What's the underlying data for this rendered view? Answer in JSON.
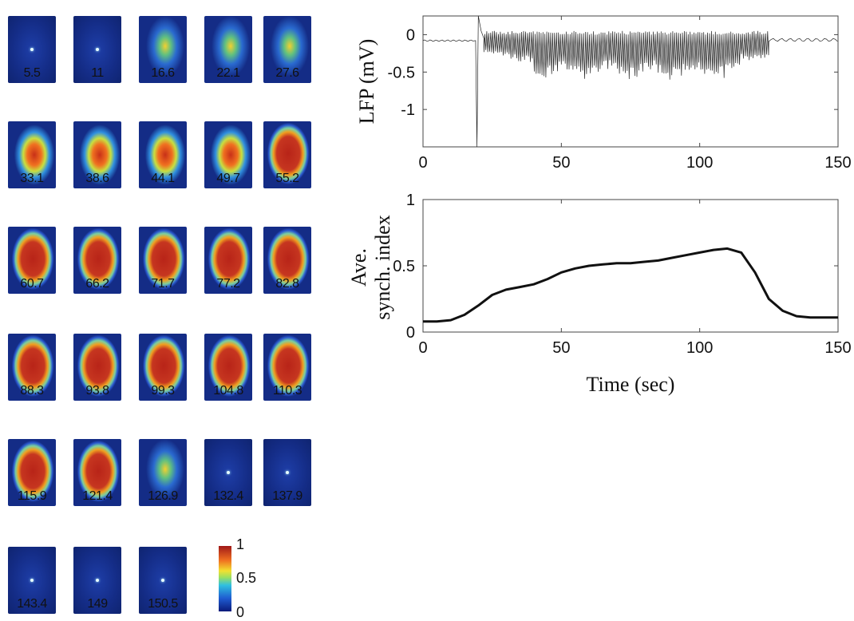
{
  "frames": {
    "labels": [
      "5.5",
      "11",
      "16.6",
      "22.1",
      "27.6",
      "33.1",
      "38.6",
      "44.1",
      "49.7",
      "55.2",
      "60.7",
      "66.2",
      "71.7",
      "77.2",
      "82.8",
      "88.3",
      "93.8",
      "99.3",
      "104.8",
      "110.3",
      "115.9",
      "121.4",
      "126.9",
      "132.4",
      "137.9",
      "143.4",
      "149",
      "150.5"
    ],
    "activation": [
      0,
      0,
      0.12,
      0.3,
      0.45,
      0.55,
      0.62,
      0.7,
      0.78,
      0.85,
      0.92,
      0.95,
      0.96,
      0.97,
      0.97,
      0.98,
      0.98,
      0.98,
      0.99,
      0.99,
      0.97,
      0.85,
      0.35,
      0.05,
      0.03,
      0,
      0,
      0
    ]
  },
  "colorbar": {
    "ticks": [
      "1",
      "0.5",
      "0"
    ],
    "colors": [
      "#0a1a7a",
      "#1f5bd1",
      "#30c0e0",
      "#9be060",
      "#f2e030",
      "#f07020",
      "#a01818"
    ]
  },
  "chart_data": [
    {
      "type": "line",
      "title": "",
      "xlabel": "",
      "ylabel": "LFP (mV)",
      "xlim": [
        0,
        150
      ],
      "ylim": [
        -1.5,
        0.25
      ],
      "xticks": [
        "0",
        "50",
        "100",
        "150"
      ],
      "yticks": [
        "0",
        "-0.5",
        "-1"
      ],
      "series": [
        {
          "description_points": [
            [
              0,
              -0.08
            ],
            [
              18,
              -0.08
            ],
            [
              19.5,
              -1.5
            ],
            [
              20,
              0.25
            ],
            [
              21,
              0.05
            ],
            [
              125,
              0
            ],
            [
              150,
              -0.08
            ]
          ]
        }
      ],
      "oscillation": {
        "start": 22,
        "end": 125,
        "trough_min": -0.62,
        "peak": 0.05
      }
    },
    {
      "type": "line",
      "title": "",
      "xlabel": "Time (sec)",
      "ylabel_line1": "Ave.",
      "ylabel_line2": "synch. index",
      "xlim": [
        0,
        150
      ],
      "ylim": [
        0,
        1
      ],
      "xticks": [
        "0",
        "50",
        "100",
        "150"
      ],
      "yticks": [
        "0",
        "0.5",
        "1"
      ],
      "x": [
        0,
        5,
        10,
        15,
        20,
        25,
        30,
        35,
        40,
        45,
        50,
        55,
        60,
        65,
        70,
        75,
        80,
        85,
        90,
        95,
        100,
        105,
        110,
        115,
        120,
        125,
        130,
        135,
        140,
        145,
        150
      ],
      "y": [
        0.08,
        0.08,
        0.09,
        0.13,
        0.2,
        0.28,
        0.32,
        0.34,
        0.36,
        0.4,
        0.45,
        0.48,
        0.5,
        0.51,
        0.52,
        0.52,
        0.53,
        0.54,
        0.56,
        0.58,
        0.6,
        0.62,
        0.63,
        0.6,
        0.45,
        0.25,
        0.16,
        0.12,
        0.11,
        0.11,
        0.11
      ]
    }
  ]
}
